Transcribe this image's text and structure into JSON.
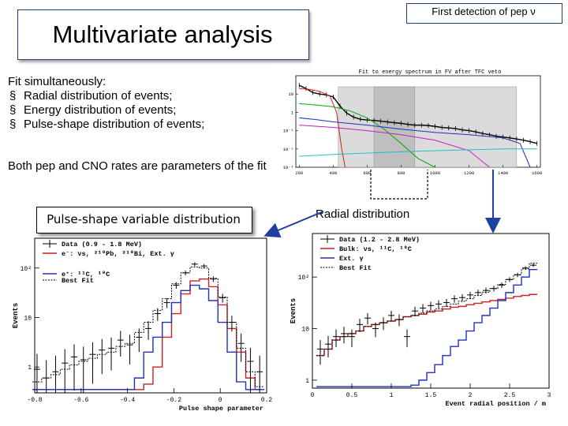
{
  "slide": {
    "header": "First detection of pep ν",
    "title": "Multivariate analysis",
    "fit_title": "Fit simultaneously:",
    "bullets": [
      "Radial distribution of events;",
      "Energy distribution of events;",
      "Pulse-shape  distribution of events;"
    ],
    "bullet_glyph": "§",
    "both_text": "Both pep and CNO rates are parameters of the fit",
    "pulse_shape_label": "Pulse-shape variable distribution",
    "radial_label": "Radial  distribution"
  },
  "chart_data": [
    {
      "type": "line",
      "title": "Fit to energy spectrum in FV after TFC veto",
      "y_scale": "log",
      "x_ticks": [
        "200",
        "400",
        "600",
        "800",
        "1000",
        "1200",
        "1400",
        "1600"
      ],
      "y_ticks": [
        "10",
        "1",
        "10⁻¹",
        "10⁻²",
        "10⁻³"
      ],
      "shaded_regions": [
        [
          430,
          1480
        ],
        [
          640,
          880
        ]
      ],
      "series": [
        {
          "color": "#000000",
          "x": [
            200,
            240,
            280,
            320,
            360,
            400,
            440,
            480,
            520,
            560,
            600,
            640,
            680,
            720,
            760,
            800,
            840,
            880,
            920,
            960,
            1000,
            1040,
            1080,
            1120,
            1160,
            1200,
            1240,
            1280,
            1320,
            1360,
            1400,
            1440,
            1480,
            1520,
            1560,
            1600
          ],
          "y": [
            30,
            20,
            12,
            10,
            9,
            7,
            2.2,
            0.9,
            0.55,
            0.42,
            0.38,
            0.36,
            0.33,
            0.3,
            0.27,
            0.25,
            0.22,
            0.2,
            0.2,
            0.19,
            0.17,
            0.15,
            0.14,
            0.13,
            0.11,
            0.1,
            0.085,
            0.07,
            0.06,
            0.05,
            0.045,
            0.04,
            0.035,
            0.03,
            0.025,
            0.02
          ]
        },
        {
          "color": "#00aa00",
          "x": [
            200,
            300,
            400,
            500,
            600,
            700,
            800,
            900,
            1000
          ],
          "y": [
            3,
            2.5,
            2,
            1.2,
            0.5,
            0.12,
            0.02,
            0.003,
            0.001
          ]
        },
        {
          "color": "#d02020",
          "x": [
            200,
            260,
            320,
            380,
            420,
            450,
            470
          ],
          "y": [
            20,
            18,
            14,
            8,
            1,
            0.01,
            0.001
          ]
        },
        {
          "color": "#2030c0",
          "x": [
            200,
            300,
            400,
            600,
            800,
            1000,
            1200,
            1400,
            1500,
            1560
          ],
          "y": [
            0.5,
            0.4,
            0.3,
            0.2,
            0.12,
            0.08,
            0.06,
            0.04,
            0.02,
            0.001
          ]
        },
        {
          "color": "#c020c0",
          "x": [
            200,
            400,
            600,
            800,
            1000,
            1200,
            1320
          ],
          "y": [
            0.2,
            0.15,
            0.1,
            0.06,
            0.03,
            0.008,
            0.001
          ]
        },
        {
          "color": "#20c0c0",
          "x": [
            200,
            400,
            600,
            800,
            1000,
            1200,
            1400,
            1600
          ],
          "y": [
            0.004,
            0.005,
            0.006,
            0.007,
            0.008,
            0.009,
            0.01,
            0.01
          ]
        }
      ]
    },
    {
      "type": "line",
      "xlabel": "Pulse shape parameter",
      "ylabel": "Events",
      "y_scale": "log",
      "xlim": [
        -0.8,
        0.2
      ],
      "ylim": [
        0.3,
        400
      ],
      "x_ticks": [
        "-0.8",
        "-0.6",
        "-0.4",
        "-0.2",
        "0",
        "0.2"
      ],
      "y_ticks": [
        "10²",
        "10",
        "1"
      ],
      "legend": [
        "Data (0.9 - 1.8 MeV)",
        "e⁻: νs, ²¹⁰Pb, ²¹⁰Bi, Ext. γ",
        "e⁺: ¹¹C, ¹⁰C",
        "Best Fit"
      ],
      "legend_placement": "top-left",
      "x": [
        -0.79,
        -0.75,
        -0.71,
        -0.67,
        -0.63,
        -0.59,
        -0.55,
        -0.51,
        -0.47,
        -0.43,
        -0.39,
        -0.35,
        -0.31,
        -0.27,
        -0.23,
        -0.19,
        -0.15,
        -0.11,
        -0.07,
        -0.03,
        0.01,
        0.05,
        0.09,
        0.13,
        0.17
      ],
      "series": [
        {
          "name": "Data (0.9 - 1.8 MeV)",
          "values": [
            0.9,
            0.6,
            0.8,
            1.2,
            1.6,
            1.4,
            1.8,
            2.2,
            2.4,
            3.5,
            2.8,
            4,
            6,
            12,
            20,
            45,
            80,
            120,
            110,
            60,
            25,
            8,
            3,
            1.3,
            0.8
          ]
        },
        {
          "name": "e⁻: νs, ²¹⁰Pb, ²¹⁰Bi, Ext. γ",
          "values": [
            0.35,
            0.35,
            0.35,
            0.35,
            0.35,
            0.35,
            0.35,
            0.35,
            0.35,
            0.35,
            0.35,
            0.35,
            0.45,
            1,
            4,
            12,
            30,
            55,
            60,
            42,
            18,
            6,
            2,
            0.6,
            0.35
          ]
        },
        {
          "name": "e⁺: ¹¹C, ¹⁰C",
          "values": [
            0.35,
            0.35,
            0.35,
            0.35,
            0.35,
            0.35,
            0.35,
            0.35,
            0.35,
            0.35,
            0.35,
            0.6,
            2,
            4,
            8,
            20,
            35,
            45,
            38,
            22,
            8,
            2,
            0.5,
            0.35,
            0.35
          ]
        },
        {
          "name": "Best Fit",
          "values": [
            0.5,
            0.6,
            0.7,
            0.9,
            1.1,
            1.3,
            1.5,
            1.8,
            2,
            2.6,
            3,
            5,
            8,
            14,
            24,
            48,
            80,
            105,
            100,
            62,
            26,
            8,
            2.4,
            0.8,
            0.4
          ]
        }
      ]
    },
    {
      "type": "line",
      "xlabel": "Event radial position / m",
      "ylabel": "Events",
      "y_scale": "log",
      "xlim": [
        0,
        3
      ],
      "ylim": [
        0.7,
        700
      ],
      "x_ticks": [
        "0",
        "0.5",
        "1",
        "1.5",
        "2",
        "2.5",
        "3"
      ],
      "y_ticks": [
        "10²",
        "10",
        "1"
      ],
      "legend": [
        "Data (1.2 - 2.8 MeV)",
        "Bulk: νs, ¹¹C, ¹⁰C",
        "Ext. γ",
        "Best Fit"
      ],
      "legend_placement": "top-left",
      "x": [
        0.1,
        0.2,
        0.3,
        0.4,
        0.5,
        0.6,
        0.7,
        0.8,
        0.9,
        1.0,
        1.1,
        1.2,
        1.3,
        1.4,
        1.5,
        1.6,
        1.7,
        1.8,
        1.9,
        2.0,
        2.1,
        2.2,
        2.3,
        2.4,
        2.5,
        2.6,
        2.7,
        2.8
      ],
      "series": [
        {
          "name": "Data (1.2 - 2.8 MeV)",
          "values": [
            4,
            5,
            7,
            8,
            7,
            12,
            16,
            10,
            13,
            18,
            15,
            7,
            22,
            25,
            28,
            30,
            32,
            38,
            40,
            45,
            50,
            55,
            60,
            70,
            90,
            110,
            150,
            170
          ]
        },
        {
          "name": "Bulk: νs, ¹¹C, ¹⁰C",
          "values": [
            3,
            4,
            6,
            7,
            8,
            9,
            11,
            12,
            13,
            14,
            15,
            17,
            18,
            19,
            21,
            22,
            24,
            26,
            27,
            29,
            31,
            33,
            35,
            37,
            39,
            42,
            44,
            46
          ]
        },
        {
          "name": "Ext. γ",
          "values": [
            0.75,
            0.75,
            0.75,
            0.75,
            0.75,
            0.75,
            0.75,
            0.75,
            0.75,
            0.75,
            0.75,
            0.75,
            0.8,
            1,
            1.4,
            2,
            3,
            4.5,
            6,
            9,
            13,
            18,
            25,
            35,
            50,
            70,
            100,
            140
          ]
        },
        {
          "name": "Best Fit",
          "values": [
            3,
            4,
            6,
            7,
            8,
            9,
            11,
            12,
            13,
            14,
            15,
            17,
            18,
            20,
            22,
            24,
            27,
            30,
            34,
            38,
            44,
            51,
            60,
            72,
            89,
            112,
            144,
            186
          ]
        }
      ]
    }
  ]
}
